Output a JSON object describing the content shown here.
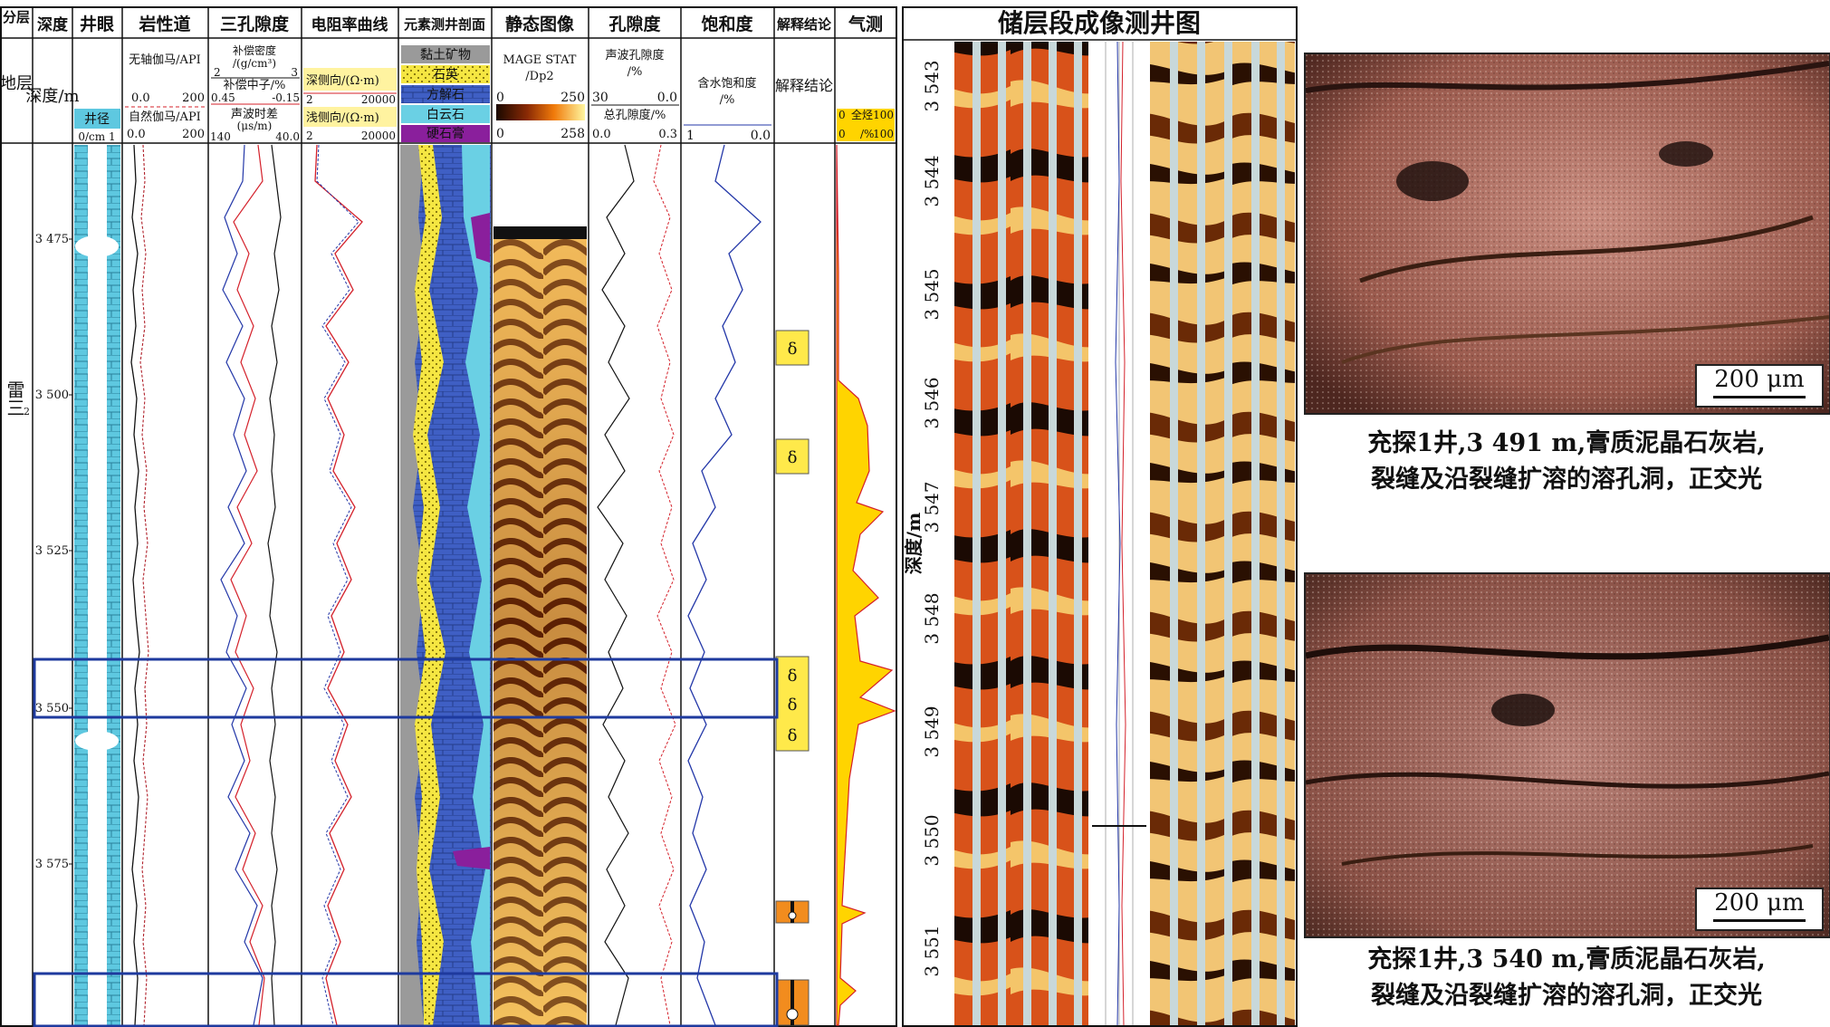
{
  "log_panel": {
    "track_headers": {
      "formation": "分层",
      "depth": "深度",
      "borehole": "井眼",
      "lithology": "岩性道",
      "three_porosity": "三孔隙度",
      "resistivity": "电阻率曲线",
      "element_profile": "元素测井剖面",
      "static_image": "静态图像",
      "porosity": "孔隙度",
      "saturation": "饱和度",
      "interpretation": "解释结论",
      "gas_logging": "气测"
    },
    "sub_headers": {
      "formation": "地层",
      "depth": "深度/m",
      "borehole_curve": "井径",
      "borehole_unit": "0/cm 1",
      "gr_axis_label": "无轴伽马/API",
      "gr_axis_left": "0.0",
      "gr_axis_right": "200",
      "sp_label": "自然伽马/API",
      "sp_left": "0.0",
      "sp_right": "200",
      "den_label": "补偿密度",
      "den_unit": "/(g/cm³)",
      "den_left": "2",
      "den_right": "3",
      "cnl_label": "补偿中子/%",
      "cnl_left": "0.45",
      "cnl_right": "-0.15",
      "ac_label": "声波时差",
      "ac_unit": "(μs/m)",
      "ac_left": "140",
      "ac_right": "40.0",
      "rd_label": "深侧向/(Ω·m)",
      "rd_left": "2",
      "rd_right": "20000",
      "rs_label": "浅侧向/(Ω·m)",
      "rs_left": "2",
      "rs_right": "20000",
      "legend_clay": "黏土矿物",
      "legend_quartz": "石英",
      "legend_calcite": "方解石",
      "legend_dolomite": "白云石",
      "legend_anhydrite": "硬石膏",
      "img_label": "MAGE STAT",
      "img_unit": "/Dp2",
      "img_left": "0",
      "img_right": "250",
      "img_left2": "0",
      "img_right2": "258",
      "phi_ac_label": "声波孔隙度",
      "phi_ac_unit": "/%",
      "phi_ac_left": "30",
      "phi_ac_right": "0.0",
      "phi_t_label": "总孔隙度/%",
      "phi_t_left": "0.0",
      "phi_t_right": "0.3",
      "sw_label": "含水饱和度",
      "sw_unit": "/%",
      "sw_left": "1",
      "sw_right": "0.0",
      "interp_label": "解释结论",
      "gas_label": "全烃",
      "gas_unit": "/%",
      "gas_left": "0",
      "gas_right": "100",
      "gas_left2": "0",
      "gas_right2": "100"
    },
    "formation_name": "雷三",
    "formation_sup": "2",
    "depth_ticks": [
      "3 475",
      "3 500",
      "3 525",
      "3 550",
      "3 575"
    ],
    "interpretation_symbol": "δ"
  },
  "image_log": {
    "title": "储层段成像测井图",
    "axis_label": "深度/m",
    "depth_ticks": [
      "3 543",
      "3 544",
      "3 545",
      "3 546",
      "3 547",
      "3 548",
      "3 549",
      "3 550",
      "3 551"
    ]
  },
  "photos": [
    {
      "scale": "200 μm",
      "caption_line1": "充探1井,3 491 m,膏质泥晶石灰岩,",
      "caption_line2": "裂缝及沿裂缝扩溶的溶孔洞，正交光"
    },
    {
      "scale": "200 μm",
      "caption_line1": "充探1井,3 540 m,膏质泥晶石灰岩,",
      "caption_line2": "裂缝及沿裂缝扩溶的溶孔洞，正交光"
    }
  ],
  "colors": {
    "borehole": "#5ec8e0",
    "clay": "#9a9a9a",
    "quartz": "#f5e642",
    "calcite": "#3f5fc4",
    "dolomite": "#6ad0e4",
    "anhydrite": "#8a1f9c",
    "gas_fill": "#ffd400",
    "interp_yellow": "#ffe94a",
    "interp_orange": "#f28c1e",
    "curve_red": "#d4202a",
    "curve_blue": "#2337a8",
    "highlight_box": "#1e3a9e"
  }
}
